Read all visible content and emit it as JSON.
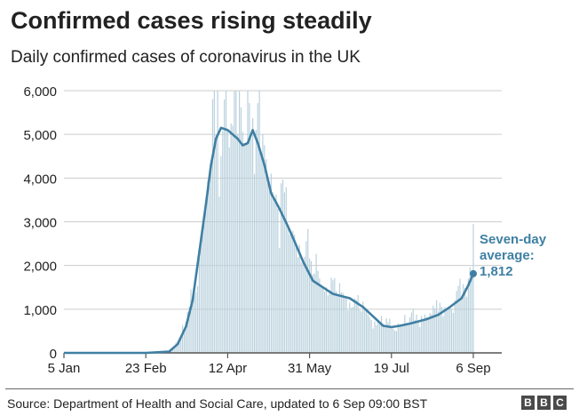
{
  "chart_data": {
    "type": "bar",
    "title": "Confirmed cases rising steadily",
    "subtitle": "Daily confirmed cases of coronavirus in the UK",
    "xlabel": "",
    "ylabel": "",
    "x_ticks": [
      "5 Jan",
      "23 Feb",
      "12 Apr",
      "31 May",
      "19 Jul",
      "6 Sep"
    ],
    "y_ticks": [
      "0",
      "1,000",
      "2,000",
      "3,000",
      "4,000",
      "5,000",
      "6,000"
    ],
    "ylim": [
      0,
      6000
    ],
    "xlim": [
      "5 Jan",
      "6 Sep"
    ],
    "grid": true,
    "bar_color": "#b8d0dc",
    "line_color": "#3f7fa3",
    "daily_cases": {
      "keypoints": [
        [
          "5 Jan",
          0
        ],
        [
          "23 Feb",
          0
        ],
        [
          "8 Mar",
          20
        ],
        [
          "14 Mar",
          340
        ],
        [
          "18 Mar",
          700
        ],
        [
          "22 Mar",
          1200
        ],
        [
          "26 Mar",
          2300
        ],
        [
          "30 Mar",
          3300
        ],
        [
          "2 Apr",
          4400
        ],
        [
          "5 Apr",
          5000
        ],
        [
          "8 Apr",
          4500
        ],
        [
          "10 Apr",
          5800
        ],
        [
          "12 Apr",
          5100
        ],
        [
          "15 Apr",
          5200
        ],
        [
          "18 Apr",
          5000
        ],
        [
          "22 Apr",
          4800
        ],
        [
          "24 Apr",
          6000
        ],
        [
          "26 Apr",
          4900
        ],
        [
          "29 Apr",
          5100
        ],
        [
          "2 May",
          4600
        ],
        [
          "7 May",
          3900
        ],
        [
          "12 May",
          3300
        ],
        [
          "18 May",
          2900
        ],
        [
          "23 May",
          2500
        ],
        [
          "28 May",
          2200
        ],
        [
          "2 Jun",
          1800
        ],
        [
          "6 Jun",
          1700
        ],
        [
          "10 Jun",
          1500
        ],
        [
          "17 Jun",
          1300
        ],
        [
          "24 Jun",
          1150
        ],
        [
          "1 Jul",
          950
        ],
        [
          "7 Jul",
          750
        ],
        [
          "12 Jul",
          650
        ],
        [
          "19 Jul",
          600
        ],
        [
          "26 Jul",
          650
        ],
        [
          "2 Aug",
          750
        ],
        [
          "9 Aug",
          820
        ],
        [
          "16 Aug",
          950
        ],
        [
          "23 Aug",
          1050
        ],
        [
          "30 Aug",
          1300
        ],
        [
          "3 Sep",
          1700
        ],
        [
          "5 Sep",
          1900
        ],
        [
          "6 Sep",
          2950
        ]
      ]
    },
    "seven_day_average": {
      "name": "Seven-day average",
      "keypoints": [
        [
          "5 Jan",
          0
        ],
        [
          "23 Feb",
          0
        ],
        [
          "8 Mar",
          30
        ],
        [
          "13 Mar",
          200
        ],
        [
          "18 Mar",
          600
        ],
        [
          "22 Mar",
          1200
        ],
        [
          "26 Mar",
          2300
        ],
        [
          "30 Mar",
          3400
        ],
        [
          "2 Apr",
          4300
        ],
        [
          "5 Apr",
          4900
        ],
        [
          "8 Apr",
          5150
        ],
        [
          "12 Apr",
          5100
        ],
        [
          "15 Apr",
          5000
        ],
        [
          "18 Apr",
          4900
        ],
        [
          "21 Apr",
          4750
        ],
        [
          "24 Apr",
          4800
        ],
        [
          "27 Apr",
          5100
        ],
        [
          "30 Apr",
          4800
        ],
        [
          "4 May",
          4300
        ],
        [
          "8 May",
          3650
        ],
        [
          "13 May",
          3300
        ],
        [
          "18 May",
          2900
        ],
        [
          "22 May",
          2550
        ],
        [
          "27 May",
          2100
        ],
        [
          "2 Jun",
          1650
        ],
        [
          "8 Jun",
          1500
        ],
        [
          "14 Jun",
          1350
        ],
        [
          "24 Jun",
          1250
        ],
        [
          "2 Jul",
          1050
        ],
        [
          "9 Jul",
          800
        ],
        [
          "14 Jul",
          620
        ],
        [
          "19 Jul",
          590
        ],
        [
          "24 Jul",
          620
        ],
        [
          "31 Jul",
          680
        ],
        [
          "9 Aug",
          770
        ],
        [
          "16 Aug",
          870
        ],
        [
          "23 Aug",
          1050
        ],
        [
          "30 Aug",
          1250
        ],
        [
          "3 Sep",
          1550
        ],
        [
          "6 Sep",
          1812
        ]
      ]
    },
    "annotation": {
      "line1": "Seven-day",
      "line2": "average:",
      "value_label": "1,812",
      "value": 1812,
      "date": "6 Sep",
      "color": "#3f7fa3"
    },
    "text_color": "#222222",
    "grid_color": "#cccccc"
  },
  "footer": {
    "source": "Source: Department of Health and Social Care, updated to 6 Sep 09:00 BST",
    "logo_letters": [
      "B",
      "B",
      "C"
    ]
  }
}
